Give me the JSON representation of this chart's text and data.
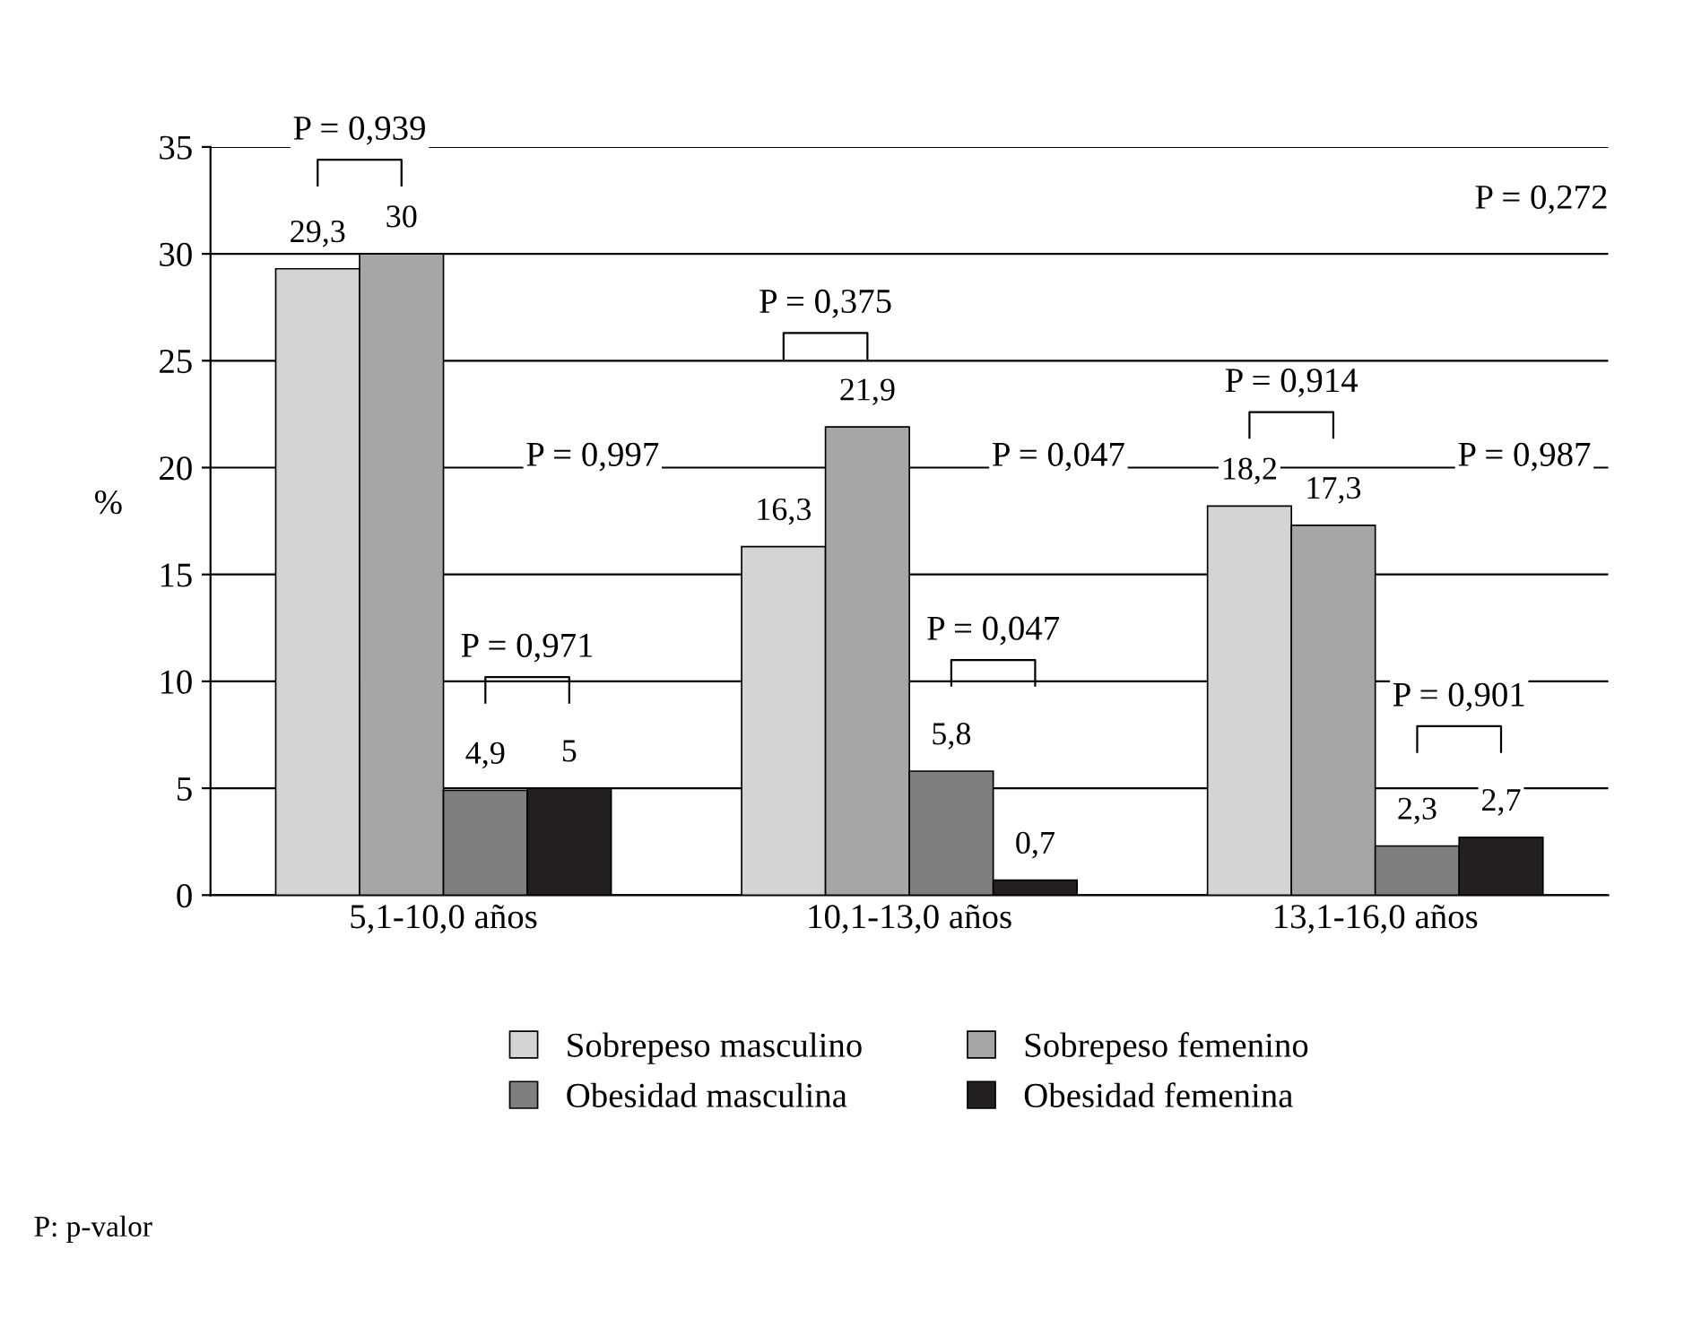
{
  "chart_data": {
    "type": "bar",
    "ylabel": "%",
    "categories": [
      "5,1-10,0 años",
      "10,1-13,0 años",
      "13,1-16,0 años"
    ],
    "series": [
      {
        "name": "Sobrepeso masculino",
        "color": "#d4d4d4",
        "values": [
          29.3,
          16.3,
          18.2
        ],
        "value_labels": [
          "29,3",
          "16,3",
          "18,2"
        ]
      },
      {
        "name": "Sobrepeso femenino",
        "color": "#a6a6a6",
        "values": [
          30,
          21.9,
          17.3
        ],
        "value_labels": [
          "30",
          "21,9",
          "17,3"
        ]
      },
      {
        "name": "Obesidad masculina",
        "color": "#7f7f7f",
        "values": [
          4.9,
          5.8,
          2.3
        ],
        "value_labels": [
          "4,9",
          "5,8",
          "2,3"
        ]
      },
      {
        "name": "Obesidad femenina",
        "color": "#231f20",
        "values": [
          5,
          0.7,
          2.7
        ],
        "value_labels": [
          "5",
          "0,7",
          "2,7"
        ]
      }
    ],
    "ylim": [
      0,
      35
    ],
    "yticks": [
      0,
      5,
      10,
      15,
      20,
      25,
      30,
      35
    ],
    "grid": "y",
    "legend": "bottom",
    "annotations": [
      "P = 0,939",
      "P = 0,997",
      "P = 0,971",
      "P = 0,375",
      "P = 0,047",
      "P = 0,047",
      "P = 0,914",
      "P = 0,987",
      "P = 0,901",
      "P = 0,272",
      "P: p-valor"
    ]
  }
}
